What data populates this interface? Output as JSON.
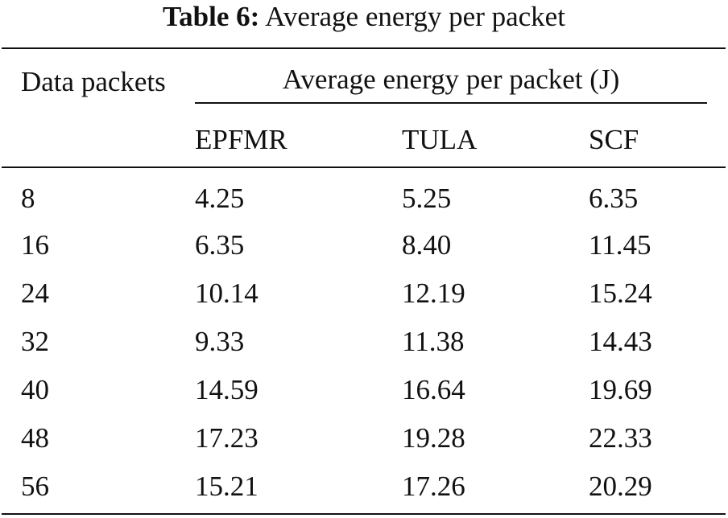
{
  "caption": {
    "label": "Table 6:",
    "text": "Average energy per packet"
  },
  "table": {
    "stub_header": "Data packets",
    "group_header": "Average energy per packet (J)",
    "columns": [
      "EPFMR",
      "TULA",
      "SCF"
    ],
    "rows": [
      [
        "8",
        "4.25",
        "5.25",
        "6.35"
      ],
      [
        "16",
        "6.35",
        "8.40",
        "11.45"
      ],
      [
        "24",
        "10.14",
        "12.19",
        "15.24"
      ],
      [
        "32",
        "9.33",
        "11.38",
        "14.43"
      ],
      [
        "40",
        "14.59",
        "16.64",
        "19.69"
      ],
      [
        "48",
        "17.23",
        "19.28",
        "22.33"
      ],
      [
        "56",
        "15.21",
        "17.26",
        "20.29"
      ]
    ]
  }
}
